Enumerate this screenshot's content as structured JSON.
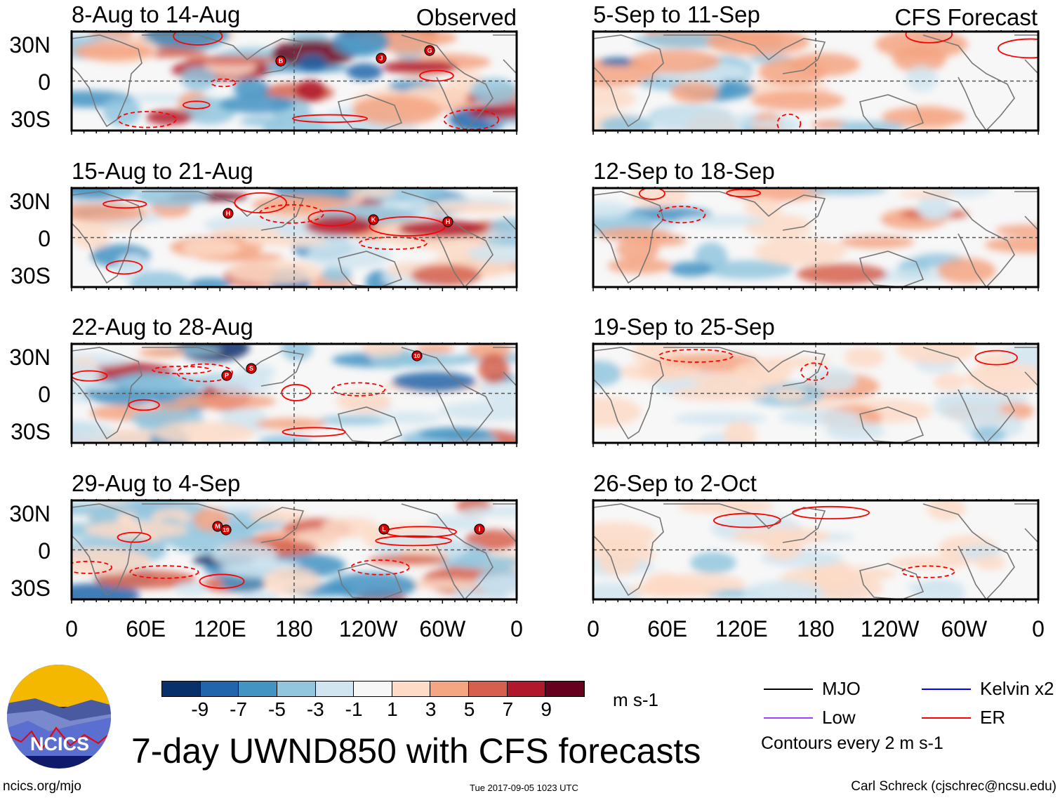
{
  "chart_data": {
    "type": "heatmap",
    "title": "7-day UWND850 with CFS forecasts",
    "variable": "850 hPa zonal wind anomaly",
    "units": "m s-1",
    "column_labels": [
      "Observed",
      "CFS Forecast"
    ],
    "lat_ticks": [
      "30N",
      "0",
      "30S"
    ],
    "lon_ticks": [
      "0",
      "60E",
      "120E",
      "180",
      "120W",
      "60W",
      "0"
    ],
    "colorbar_ticks": [
      "-9",
      "-7",
      "-5",
      "-3",
      "-1",
      "1",
      "3",
      "5",
      "7",
      "9"
    ],
    "colorbar_colors": [
      "#08306b",
      "#2166ac",
      "#4393c3",
      "#92c5de",
      "#d1e5f0",
      "#f7f7f7",
      "#fddbc7",
      "#f4a582",
      "#d6604d",
      "#b2182b",
      "#67001f"
    ],
    "panels": [
      {
        "title": "8-Aug to 14-Aug",
        "column": "Observed",
        "storms": [
          "B",
          "J",
          "G"
        ]
      },
      {
        "title": "15-Aug to 21-Aug",
        "column": "Observed",
        "storms": [
          "H",
          "K",
          "H"
        ]
      },
      {
        "title": "22-Aug to 28-Aug",
        "column": "Observed",
        "storms": [
          "P",
          "S",
          "10"
        ]
      },
      {
        "title": "29-Aug to 4-Sep",
        "column": "Observed",
        "storms": [
          "M",
          "19",
          "L",
          "I"
        ]
      },
      {
        "title": "5-Sep to 11-Sep",
        "column": "CFS Forecast",
        "storms": []
      },
      {
        "title": "12-Sep to 18-Sep",
        "column": "CFS Forecast",
        "storms": []
      },
      {
        "title": "19-Sep to 25-Sep",
        "column": "CFS Forecast",
        "storms": []
      },
      {
        "title": "26-Sep to 2-Oct",
        "column": "CFS Forecast",
        "storms": []
      }
    ],
    "legend": [
      {
        "label": "MJO",
        "color": "#000000"
      },
      {
        "label": "Kelvin x2",
        "color": "#0000ff"
      },
      {
        "label": "Low",
        "color": "#a040ff"
      },
      {
        "label": "ER",
        "color": "#ff0000"
      }
    ],
    "contour_note": "Contours every 2 m s-1"
  },
  "logo_text": "NCICS",
  "footer": {
    "left": "ncics.org/mjo",
    "center": "Tue 2017-09-05 1023 UTC",
    "right": "Carl Schreck (cjschrec@ncsu.edu)"
  }
}
